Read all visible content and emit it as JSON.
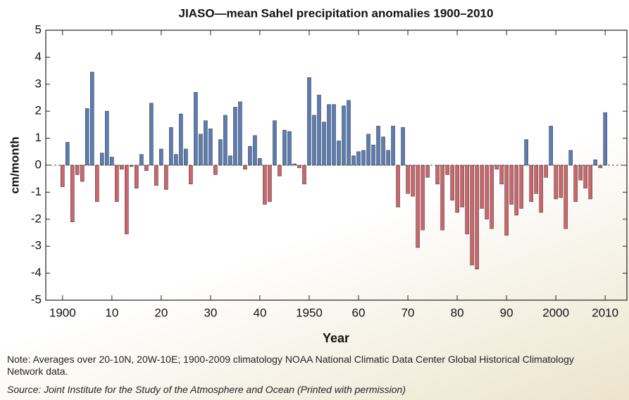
{
  "chart_data": {
    "type": "bar",
    "title": "JIASO—mean Sahel precipitation anomalies 1900–2010",
    "xlabel": "Year",
    "ylabel": "cm/month",
    "x": [
      1900,
      1901,
      1902,
      1903,
      1904,
      1905,
      1906,
      1907,
      1908,
      1909,
      1910,
      1911,
      1912,
      1913,
      1914,
      1915,
      1916,
      1917,
      1918,
      1919,
      1920,
      1921,
      1922,
      1923,
      1924,
      1925,
      1926,
      1927,
      1928,
      1929,
      1930,
      1931,
      1932,
      1933,
      1934,
      1935,
      1936,
      1937,
      1938,
      1939,
      1940,
      1941,
      1942,
      1943,
      1944,
      1945,
      1946,
      1947,
      1948,
      1949,
      1950,
      1951,
      1952,
      1953,
      1954,
      1955,
      1956,
      1957,
      1958,
      1959,
      1960,
      1961,
      1962,
      1963,
      1964,
      1965,
      1966,
      1967,
      1968,
      1969,
      1970,
      1971,
      1972,
      1973,
      1974,
      1975,
      1976,
      1977,
      1978,
      1979,
      1980,
      1981,
      1982,
      1983,
      1984,
      1985,
      1986,
      1987,
      1988,
      1989,
      1990,
      1991,
      1992,
      1993,
      1994,
      1995,
      1996,
      1997,
      1998,
      1999,
      2000,
      2001,
      2002,
      2003,
      2004,
      2005,
      2006,
      2007,
      2008,
      2009,
      2010
    ],
    "values": [
      -0.8,
      0.85,
      -2.1,
      -0.35,
      -0.6,
      2.1,
      3.45,
      -1.35,
      0.45,
      2.0,
      0.3,
      -1.35,
      -0.15,
      -2.55,
      -0.05,
      -0.85,
      0.4,
      -0.2,
      2.3,
      -0.75,
      0.6,
      -0.9,
      1.4,
      0.4,
      1.9,
      0.6,
      -0.7,
      2.7,
      1.15,
      1.65,
      1.35,
      -0.35,
      0.95,
      1.85,
      0.35,
      2.15,
      2.35,
      -0.15,
      0.7,
      1.1,
      0.25,
      -1.45,
      -1.35,
      1.65,
      -0.4,
      1.3,
      1.25,
      0.05,
      -0.1,
      -0.7,
      3.25,
      1.85,
      2.6,
      1.6,
      2.25,
      2.25,
      0.9,
      2.2,
      2.4,
      0.35,
      0.5,
      0.55,
      1.15,
      0.75,
      1.45,
      1.05,
      0.55,
      1.45,
      -1.55,
      1.4,
      -1.05,
      -1.15,
      -3.05,
      -2.4,
      -0.45,
      0,
      -0.7,
      -2.4,
      -0.35,
      -1.3,
      -1.75,
      -1.55,
      -2.55,
      -3.7,
      -3.85,
      -1.6,
      -2.0,
      -2.35,
      -0.15,
      -0.7,
      -2.6,
      -1.45,
      -1.85,
      -1.6,
      0.95,
      -1.35,
      -1.05,
      -1.75,
      -0.45,
      1.45,
      -1.25,
      -1.2,
      -2.35,
      0.55,
      -1.35,
      -0.55,
      -0.85,
      -1.25,
      0.2,
      -0.1,
      1.95
    ],
    "positive_color": "#5b7db3",
    "negative_color": "#cc666c",
    "xlim": [
      1896.6,
      2014.4
    ],
    "xticks": [
      1900,
      {
        "value": 1910,
        "label": "10"
      },
      {
        "value": 1920,
        "label": "20"
      },
      {
        "value": 1930,
        "label": "30"
      },
      {
        "value": 1940,
        "label": "40"
      },
      1950,
      {
        "value": 1960,
        "label": "60"
      },
      {
        "value": 1970,
        "label": "70"
      },
      {
        "value": 1980,
        "label": "80"
      },
      {
        "value": 1990,
        "label": "90"
      },
      2000,
      2010
    ],
    "ylim": [
      -5,
      5
    ],
    "yticks": [
      -5,
      -4,
      -3,
      -2,
      -1,
      0,
      1,
      2,
      3,
      4,
      5
    ],
    "zero_line": "dashed",
    "note": "Note:  Averages over 20-10N, 20W-10E; 1900-2009 climatology NOAA National Climatic Data Center Global Historical Climatology Network data.",
    "source": "Source: Joint Institute for the Study of the Atmosphere and Ocean (Printed with permission)"
  }
}
